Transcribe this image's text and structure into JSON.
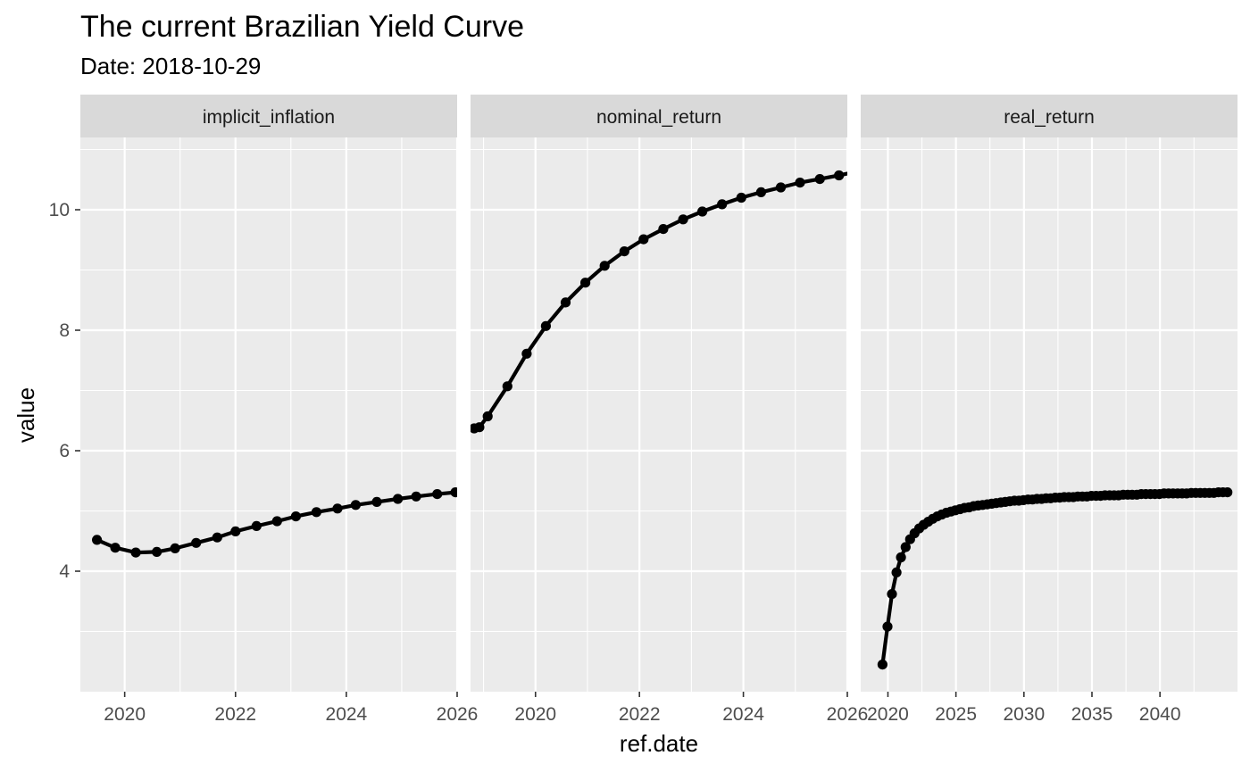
{
  "chart_data": {
    "type": "line",
    "title": "The current Brazilian Yield Curve",
    "subtitle": "Date: 2018-10-29",
    "xlabel": "ref.date",
    "ylabel": "value",
    "ylim": [
      2.0,
      11.2
    ],
    "y_ticks": [
      4,
      6,
      8,
      10
    ],
    "grid": true,
    "markers": true,
    "colors": {
      "panel_bg": "#ebebeb",
      "grid": "#ffffff",
      "strip_bg": "#d9d9d9",
      "line": "#000000"
    },
    "facets": [
      {
        "strip_label": "implicit_inflation",
        "xlim": [
          2019.2,
          2026.0
        ],
        "x_ticks": [
          2020,
          2022,
          2024,
          2026
        ],
        "x_tick_labels": [
          "2020",
          "2022",
          "2024",
          "2026"
        ],
        "points": [
          [
            2019.5,
            4.52
          ],
          [
            2019.83,
            4.39
          ],
          [
            2020.2,
            4.31
          ],
          [
            2020.58,
            4.32
          ],
          [
            2020.91,
            4.38
          ],
          [
            2021.29,
            4.47
          ],
          [
            2021.67,
            4.56
          ],
          [
            2022.0,
            4.66
          ],
          [
            2022.38,
            4.75
          ],
          [
            2022.75,
            4.83
          ],
          [
            2023.09,
            4.91
          ],
          [
            2023.46,
            4.98
          ],
          [
            2023.84,
            5.04
          ],
          [
            2024.17,
            5.1
          ],
          [
            2024.55,
            5.15
          ],
          [
            2024.93,
            5.2
          ],
          [
            2025.26,
            5.24
          ],
          [
            2025.64,
            5.28
          ],
          [
            2025.97,
            5.31
          ]
        ]
      },
      {
        "strip_label": "nominal_return",
        "xlim": [
          2018.75,
          2026.0
        ],
        "x_ticks": [
          2020,
          2022,
          2024,
          2026
        ],
        "x_tick_labels": [
          "2020",
          "2022",
          "2024",
          "2026"
        ],
        "points": [
          [
            2018.82,
            6.37
          ],
          [
            2018.92,
            6.39
          ],
          [
            2019.08,
            6.57
          ],
          [
            2019.46,
            7.07
          ],
          [
            2019.83,
            7.61
          ],
          [
            2020.2,
            8.07
          ],
          [
            2020.58,
            8.46
          ],
          [
            2020.96,
            8.79
          ],
          [
            2021.33,
            9.07
          ],
          [
            2021.71,
            9.31
          ],
          [
            2022.08,
            9.51
          ],
          [
            2022.46,
            9.68
          ],
          [
            2022.84,
            9.84
          ],
          [
            2023.21,
            9.97
          ],
          [
            2023.59,
            10.09
          ],
          [
            2023.96,
            10.2
          ],
          [
            2024.34,
            10.29
          ],
          [
            2024.72,
            10.37
          ],
          [
            2025.09,
            10.45
          ],
          [
            2025.47,
            10.51
          ],
          [
            2025.84,
            10.57
          ],
          [
            2026.22,
            10.64
          ]
        ]
      },
      {
        "strip_label": "real_return",
        "xlim": [
          2018.0,
          2045.7
        ],
        "x_ticks": [
          2020,
          2025,
          2030,
          2035,
          2040
        ],
        "x_tick_labels": [
          "2020",
          "2025",
          "2030",
          "2035",
          "2040"
        ],
        "points": [
          [
            2019.6,
            2.45
          ],
          [
            2019.97,
            3.08
          ],
          [
            2020.3,
            3.62
          ],
          [
            2020.63,
            3.98
          ],
          [
            2020.96,
            4.23
          ],
          [
            2021.3,
            4.4
          ],
          [
            2021.63,
            4.53
          ],
          [
            2021.96,
            4.63
          ],
          [
            2022.3,
            4.71
          ],
          [
            2022.63,
            4.77
          ],
          [
            2022.96,
            4.82
          ],
          [
            2023.3,
            4.87
          ],
          [
            2023.63,
            4.91
          ],
          [
            2023.96,
            4.94
          ],
          [
            2024.3,
            4.97
          ],
          [
            2024.63,
            4.99
          ],
          [
            2024.96,
            5.01
          ],
          [
            2025.3,
            5.03
          ],
          [
            2025.63,
            5.05
          ],
          [
            2025.96,
            5.06
          ],
          [
            2026.3,
            5.08
          ],
          [
            2026.63,
            5.09
          ],
          [
            2026.96,
            5.1
          ],
          [
            2027.3,
            5.11
          ],
          [
            2027.63,
            5.12
          ],
          [
            2027.96,
            5.13
          ],
          [
            2028.3,
            5.14
          ],
          [
            2028.63,
            5.15
          ],
          [
            2028.96,
            5.16
          ],
          [
            2029.3,
            5.17
          ],
          [
            2029.63,
            5.17
          ],
          [
            2029.96,
            5.18
          ],
          [
            2030.3,
            5.19
          ],
          [
            2030.63,
            5.19
          ],
          [
            2030.96,
            5.2
          ],
          [
            2031.3,
            5.2
          ],
          [
            2031.63,
            5.21
          ],
          [
            2031.96,
            5.21
          ],
          [
            2032.3,
            5.22
          ],
          [
            2032.63,
            5.22
          ],
          [
            2032.96,
            5.23
          ],
          [
            2033.3,
            5.23
          ],
          [
            2033.63,
            5.23
          ],
          [
            2033.96,
            5.24
          ],
          [
            2034.3,
            5.24
          ],
          [
            2034.63,
            5.24
          ],
          [
            2034.96,
            5.25
          ],
          [
            2035.3,
            5.25
          ],
          [
            2035.63,
            5.25
          ],
          [
            2035.96,
            5.26
          ],
          [
            2036.3,
            5.26
          ],
          [
            2036.63,
            5.26
          ],
          [
            2036.96,
            5.26
          ],
          [
            2037.3,
            5.27
          ],
          [
            2037.63,
            5.27
          ],
          [
            2037.96,
            5.27
          ],
          [
            2038.3,
            5.27
          ],
          [
            2038.63,
            5.28
          ],
          [
            2038.96,
            5.28
          ],
          [
            2039.3,
            5.28
          ],
          [
            2039.63,
            5.28
          ],
          [
            2039.96,
            5.28
          ],
          [
            2040.3,
            5.29
          ],
          [
            2040.63,
            5.29
          ],
          [
            2040.96,
            5.29
          ],
          [
            2041.3,
            5.29
          ],
          [
            2041.63,
            5.29
          ],
          [
            2041.96,
            5.29
          ],
          [
            2042.3,
            5.3
          ],
          [
            2042.63,
            5.3
          ],
          [
            2042.96,
            5.3
          ],
          [
            2043.3,
            5.3
          ],
          [
            2043.63,
            5.3
          ],
          [
            2043.96,
            5.3
          ],
          [
            2044.3,
            5.31
          ],
          [
            2044.63,
            5.31
          ],
          [
            2044.96,
            5.31
          ]
        ]
      }
    ]
  }
}
